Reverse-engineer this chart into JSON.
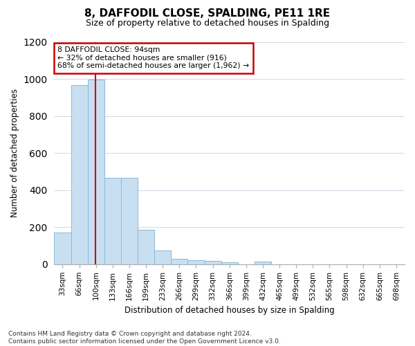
{
  "title": "8, DAFFODIL CLOSE, SPALDING, PE11 1RE",
  "subtitle": "Size of property relative to detached houses in Spalding",
  "xlabel": "Distribution of detached houses by size in Spalding",
  "ylabel": "Number of detached properties",
  "categories": [
    "33sqm",
    "66sqm",
    "100sqm",
    "133sqm",
    "166sqm",
    "199sqm",
    "233sqm",
    "266sqm",
    "299sqm",
    "332sqm",
    "366sqm",
    "399sqm",
    "432sqm",
    "465sqm",
    "499sqm",
    "532sqm",
    "565sqm",
    "598sqm",
    "632sqm",
    "665sqm",
    "698sqm"
  ],
  "values": [
    170,
    965,
    995,
    465,
    465,
    185,
    75,
    28,
    22,
    18,
    10,
    0,
    15,
    0,
    0,
    0,
    0,
    0,
    0,
    0,
    0
  ],
  "bar_color": "#c8dff2",
  "bar_edge_color": "#8ab8d8",
  "vline_x_index": 1.97,
  "annotation_text": "8 DAFFODIL CLOSE: 94sqm\n← 32% of detached houses are smaller (916)\n68% of semi-detached houses are larger (1,962) →",
  "annotation_box_color": "#ffffff",
  "annotation_box_edgecolor": "#cc0000",
  "vline_color": "#cc0000",
  "ylim": [
    0,
    1200
  ],
  "yticks": [
    0,
    200,
    400,
    600,
    800,
    1000,
    1200
  ],
  "footer": "Contains HM Land Registry data © Crown copyright and database right 2024.\nContains public sector information licensed under the Open Government Licence v3.0.",
  "bg_color": "#ffffff",
  "plot_bg_color": "#ffffff",
  "grid_color": "#d0d8e8"
}
